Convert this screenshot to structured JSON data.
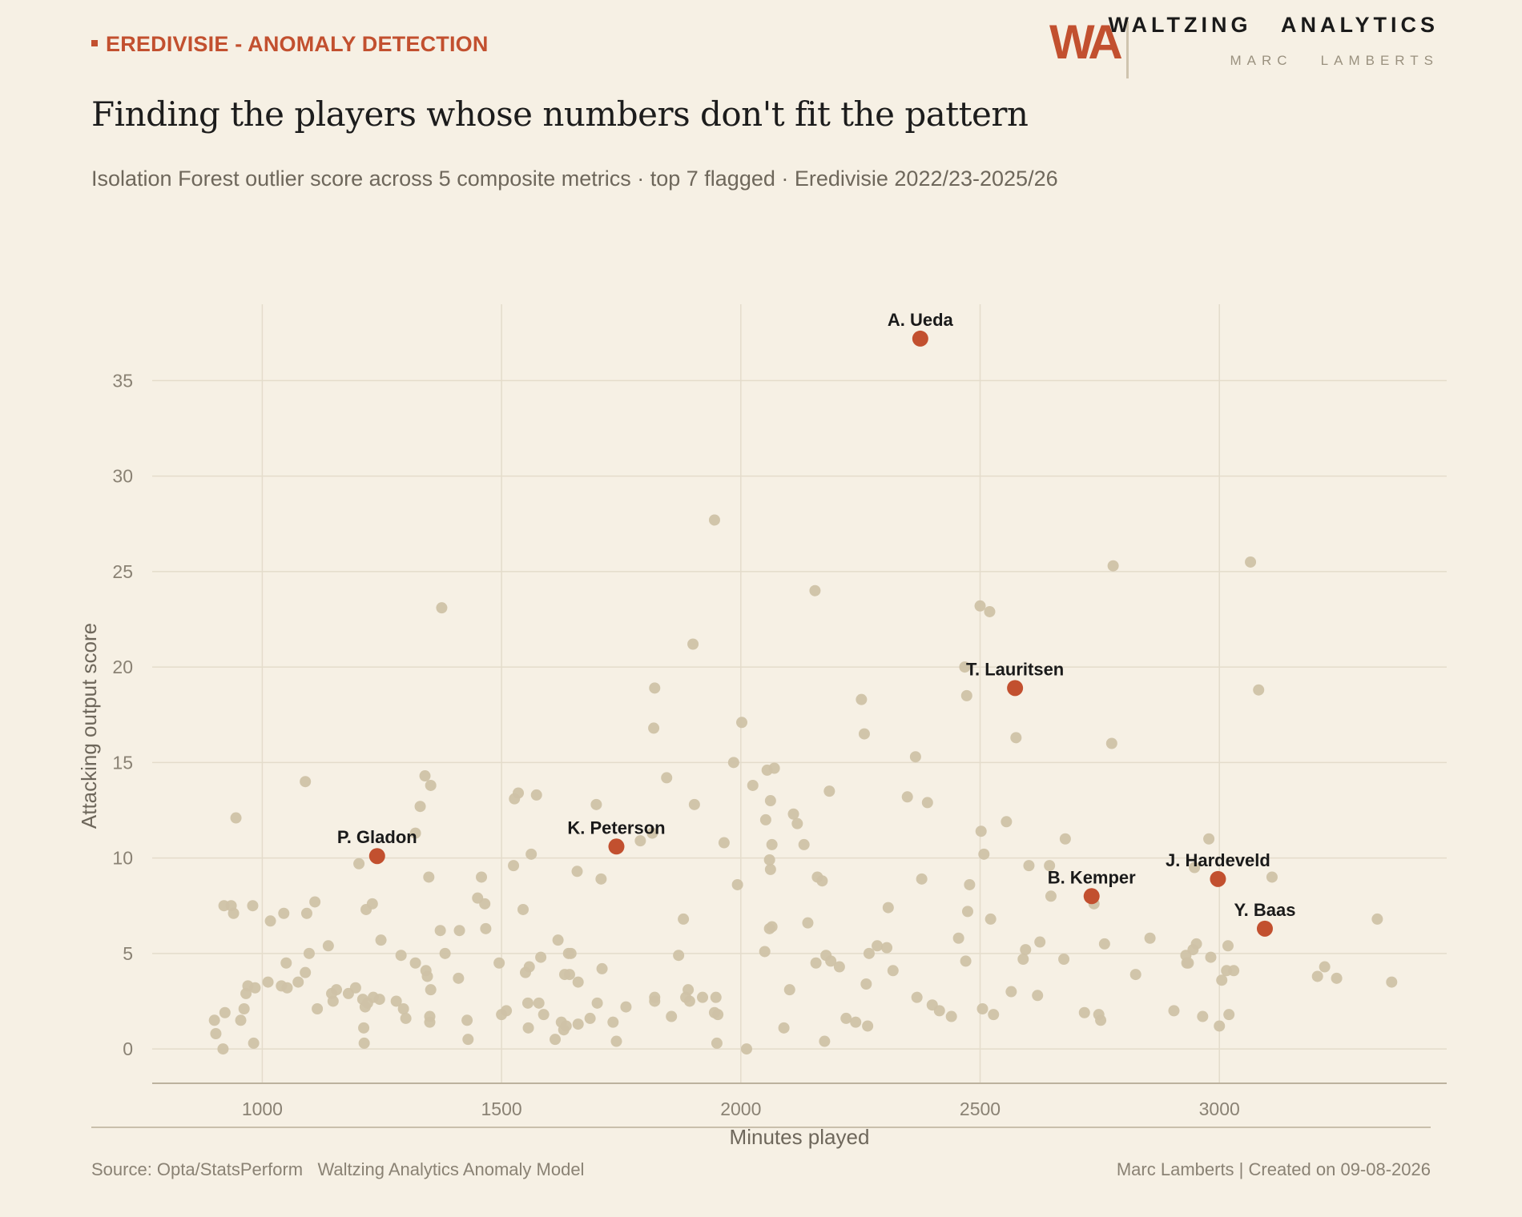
{
  "header": {
    "kicker": "EREDIVISIE - ANOMALY DETECTION",
    "logo_text": "WA",
    "brand_name": "WALTZING   ANALYTICS",
    "brand_author": "MARC   LAMBERTS"
  },
  "title": "Finding the players whose numbers don't fit the pattern",
  "subtitle": "Isolation Forest outlier score across 5 composite metrics  ·  top 7 flagged  ·  Eredivisie 2022/23-2025/26",
  "footer": {
    "source": "Source: Opta/StatsPerform   Waltzing Analytics Anomaly Model",
    "credit": "Marc Lamberts | Created on 09-08-2026"
  },
  "colors": {
    "background": "#f6f0e4",
    "accent": "#c2502f",
    "point": "#cfc2a6",
    "grid": "#e4dccb"
  },
  "chart_data": {
    "type": "scatter",
    "title": "Finding the players whose numbers don't fit the pattern",
    "xlabel": "Minutes played",
    "ylabel": "Attacking output score",
    "xlim": [
      770,
      3475
    ],
    "ylim": [
      -1.8,
      39
    ],
    "xticks": [
      1000,
      1500,
      2000,
      2500,
      3000
    ],
    "yticks": [
      0,
      5,
      10,
      15,
      20,
      25,
      30,
      35
    ],
    "grid": true,
    "highlighted": [
      {
        "name": "A. Ueda",
        "x": 2375,
        "y": 37.2
      },
      {
        "name": "T. Lauritsen",
        "x": 2573,
        "y": 18.9
      },
      {
        "name": "P. Gladon",
        "x": 1240,
        "y": 10.1
      },
      {
        "name": "K. Peterson",
        "x": 1740,
        "y": 10.6
      },
      {
        "name": "B. Kemper",
        "x": 2733,
        "y": 8.0
      },
      {
        "name": "J. Hardeveld",
        "x": 2997,
        "y": 8.9
      },
      {
        "name": "Y. Baas",
        "x": 3095,
        "y": 6.3
      }
    ],
    "points": [
      [
        900,
        1.5
      ],
      [
        903,
        0.8
      ],
      [
        918,
        0.0
      ],
      [
        920,
        7.5
      ],
      [
        922,
        1.9
      ],
      [
        935,
        7.5
      ],
      [
        940,
        7.1
      ],
      [
        945,
        12.1
      ],
      [
        955,
        1.5
      ],
      [
        962,
        2.1
      ],
      [
        966,
        2.9
      ],
      [
        970,
        3.3
      ],
      [
        980,
        7.5
      ],
      [
        982,
        0.3
      ],
      [
        985,
        3.2
      ],
      [
        1012,
        3.5
      ],
      [
        1017,
        6.7
      ],
      [
        1040,
        3.3
      ],
      [
        1045,
        7.1
      ],
      [
        1050,
        4.5
      ],
      [
        1052,
        3.2
      ],
      [
        1075,
        3.5
      ],
      [
        1090,
        4.0
      ],
      [
        1090,
        14.0
      ],
      [
        1093,
        7.1
      ],
      [
        1098,
        5.0
      ],
      [
        1110,
        7.7
      ],
      [
        1115,
        2.1
      ],
      [
        1138,
        5.4
      ],
      [
        1145,
        2.9
      ],
      [
        1148,
        2.5
      ],
      [
        1155,
        3.1
      ],
      [
        1180,
        2.9
      ],
      [
        1195,
        3.2
      ],
      [
        1202,
        9.7
      ],
      [
        1210,
        2.6
      ],
      [
        1212,
        1.1
      ],
      [
        1213,
        0.3
      ],
      [
        1215,
        2.2
      ],
      [
        1217,
        7.3
      ],
      [
        1220,
        2.4
      ],
      [
        1230,
        7.6
      ],
      [
        1232,
        2.7
      ],
      [
        1245,
        2.6
      ],
      [
        1248,
        5.7
      ],
      [
        1280,
        2.5
      ],
      [
        1290,
        4.9
      ],
      [
        1295,
        2.1
      ],
      [
        1300,
        1.6
      ],
      [
        1320,
        4.5
      ],
      [
        1330,
        12.7
      ],
      [
        1320,
        11.3
      ],
      [
        1340,
        14.3
      ],
      [
        1342,
        4.1
      ],
      [
        1345,
        3.8
      ],
      [
        1348,
        9.0
      ],
      [
        1350,
        1.4
      ],
      [
        1350,
        1.7
      ],
      [
        1352,
        13.8
      ],
      [
        1352,
        3.1
      ],
      [
        1372,
        6.2
      ],
      [
        1375,
        23.1
      ],
      [
        1382,
        5.0
      ],
      [
        1410,
        3.7
      ],
      [
        1412,
        6.2
      ],
      [
        1428,
        1.5
      ],
      [
        1430,
        0.5
      ],
      [
        1450,
        7.9
      ],
      [
        1458,
        9.0
      ],
      [
        1465,
        7.6
      ],
      [
        1467,
        6.3
      ],
      [
        1495,
        4.5
      ],
      [
        1500,
        1.8
      ],
      [
        1510,
        2.0
      ],
      [
        1525,
        9.6
      ],
      [
        1527,
        13.1
      ],
      [
        1535,
        13.4
      ],
      [
        1545,
        7.3
      ],
      [
        1550,
        4.0
      ],
      [
        1555,
        2.4
      ],
      [
        1556,
        1.1
      ],
      [
        1558,
        4.3
      ],
      [
        1562,
        10.2
      ],
      [
        1573,
        13.3
      ],
      [
        1578,
        2.4
      ],
      [
        1582,
        4.8
      ],
      [
        1588,
        1.8
      ],
      [
        1612,
        0.5
      ],
      [
        1618,
        5.7
      ],
      [
        1625,
        1.4
      ],
      [
        1630,
        1.0
      ],
      [
        1632,
        3.9
      ],
      [
        1635,
        1.2
      ],
      [
        1640,
        5.0
      ],
      [
        1642,
        3.9
      ],
      [
        1645,
        5.0
      ],
      [
        1658,
        9.3
      ],
      [
        1660,
        3.5
      ],
      [
        1660,
        1.3
      ],
      [
        1685,
        1.6
      ],
      [
        1698,
        12.8
      ],
      [
        1700,
        2.4
      ],
      [
        1708,
        8.9
      ],
      [
        1710,
        4.2
      ],
      [
        1733,
        1.4
      ],
      [
        1740,
        0.4
      ],
      [
        1760,
        2.2
      ],
      [
        1790,
        10.9
      ],
      [
        1815,
        11.3
      ],
      [
        1820,
        18.9
      ],
      [
        1818,
        16.8
      ],
      [
        1820,
        2.7
      ],
      [
        1820,
        2.5
      ],
      [
        1845,
        14.2
      ],
      [
        1855,
        1.7
      ],
      [
        1870,
        4.9
      ],
      [
        1880,
        6.8
      ],
      [
        1885,
        2.7
      ],
      [
        1890,
        3.1
      ],
      [
        1893,
        2.5
      ],
      [
        1900,
        21.2
      ],
      [
        1903,
        12.8
      ],
      [
        1920,
        2.7
      ],
      [
        1945,
        27.7
      ],
      [
        1945,
        1.9
      ],
      [
        1948,
        2.7
      ],
      [
        1950,
        0.3
      ],
      [
        1952,
        1.8
      ],
      [
        1965,
        10.8
      ],
      [
        1985,
        15.0
      ],
      [
        1993,
        8.6
      ],
      [
        2002,
        17.1
      ],
      [
        2012,
        0.0
      ],
      [
        2025,
        13.8
      ],
      [
        2050,
        5.1
      ],
      [
        2052,
        12.0
      ],
      [
        2055,
        14.6
      ],
      [
        2060,
        9.9
      ],
      [
        2060,
        6.3
      ],
      [
        2062,
        13.0
      ],
      [
        2062,
        9.4
      ],
      [
        2065,
        6.4
      ],
      [
        2065,
        10.7
      ],
      [
        2070,
        14.7
      ],
      [
        2090,
        1.1
      ],
      [
        2102,
        3.1
      ],
      [
        2110,
        12.3
      ],
      [
        2118,
        11.8
      ],
      [
        2132,
        10.7
      ],
      [
        2140,
        6.6
      ],
      [
        2155,
        24.0
      ],
      [
        2157,
        4.5
      ],
      [
        2160,
        9.0
      ],
      [
        2170,
        8.8
      ],
      [
        2175,
        0.4
      ],
      [
        2178,
        4.9
      ],
      [
        2185,
        13.5
      ],
      [
        2188,
        4.6
      ],
      [
        2206,
        4.3
      ],
      [
        2220,
        1.6
      ],
      [
        2240,
        1.4
      ],
      [
        2252,
        18.3
      ],
      [
        2258,
        16.5
      ],
      [
        2262,
        3.4
      ],
      [
        2265,
        1.2
      ],
      [
        2268,
        5.0
      ],
      [
        2285,
        5.4
      ],
      [
        2305,
        5.3
      ],
      [
        2308,
        7.4
      ],
      [
        2318,
        4.1
      ],
      [
        2348,
        13.2
      ],
      [
        2365,
        15.3
      ],
      [
        2368,
        2.7
      ],
      [
        2378,
        8.9
      ],
      [
        2390,
        12.9
      ],
      [
        2400,
        2.3
      ],
      [
        2415,
        2.0
      ],
      [
        2440,
        1.7
      ],
      [
        2455,
        5.8
      ],
      [
        2468,
        20.0
      ],
      [
        2470,
        4.6
      ],
      [
        2472,
        18.5
      ],
      [
        2474,
        7.2
      ],
      [
        2478,
        8.6
      ],
      [
        2500,
        23.2
      ],
      [
        2502,
        11.4
      ],
      [
        2505,
        2.1
      ],
      [
        2508,
        10.2
      ],
      [
        2520,
        22.9
      ],
      [
        2522,
        6.8
      ],
      [
        2528,
        1.8
      ],
      [
        2555,
        11.9
      ],
      [
        2565,
        3.0
      ],
      [
        2575,
        16.3
      ],
      [
        2590,
        4.7
      ],
      [
        2595,
        5.2
      ],
      [
        2602,
        9.6
      ],
      [
        2620,
        2.8
      ],
      [
        2625,
        5.6
      ],
      [
        2645,
        9.6
      ],
      [
        2648,
        8.0
      ],
      [
        2675,
        4.7
      ],
      [
        2678,
        11.0
      ],
      [
        2718,
        1.9
      ],
      [
        2738,
        7.6
      ],
      [
        2748,
        1.8
      ],
      [
        2752,
        1.5
      ],
      [
        2760,
        5.5
      ],
      [
        2775,
        16.0
      ],
      [
        2778,
        25.3
      ],
      [
        2825,
        3.9
      ],
      [
        2855,
        5.8
      ],
      [
        2905,
        2.0
      ],
      [
        2930,
        4.9
      ],
      [
        2932,
        4.5
      ],
      [
        2935,
        4.5
      ],
      [
        2945,
        5.2
      ],
      [
        2948,
        9.5
      ],
      [
        2952,
        5.5
      ],
      [
        2965,
        1.7
      ],
      [
        2978,
        11.0
      ],
      [
        2982,
        4.8
      ],
      [
        3000,
        1.2
      ],
      [
        3005,
        3.6
      ],
      [
        3015,
        4.1
      ],
      [
        3018,
        5.4
      ],
      [
        3020,
        1.8
      ],
      [
        3030,
        4.1
      ],
      [
        3065,
        25.5
      ],
      [
        3082,
        18.8
      ],
      [
        3110,
        9.0
      ],
      [
        3205,
        3.8
      ],
      [
        3220,
        4.3
      ],
      [
        3245,
        3.7
      ],
      [
        3330,
        6.8
      ],
      [
        3360,
        3.5
      ]
    ]
  }
}
